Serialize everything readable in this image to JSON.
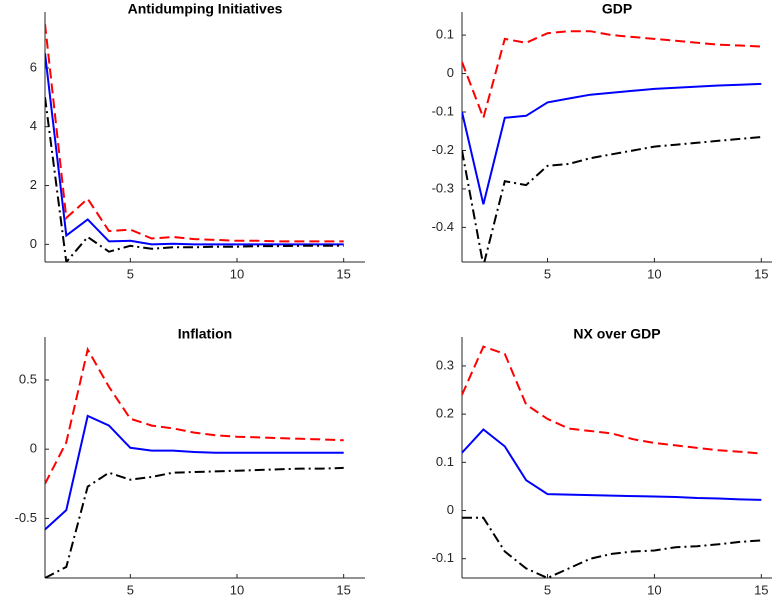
{
  "chart_data": [
    {
      "type": "line",
      "title": "Antidumping Initiatives",
      "x": [
        1,
        2,
        3,
        4,
        5,
        6,
        7,
        8,
        9,
        10,
        11,
        12,
        13,
        14,
        15
      ],
      "xlim": [
        1,
        16
      ],
      "xticks": [
        5,
        10,
        15
      ],
      "ylim": [
        -0.6,
        7.9
      ],
      "yticks": [
        0,
        2,
        4,
        6
      ],
      "series": [
        {
          "color": "#ff0000",
          "linestyle": "dashed",
          "values": [
            7.5,
            0.9,
            1.55,
            0.45,
            0.5,
            0.2,
            0.25,
            0.18,
            0.15,
            0.12,
            0.12,
            0.1,
            0.1,
            0.1,
            0.1
          ]
        },
        {
          "color": "#0000ff",
          "linestyle": "solid",
          "values": [
            6.5,
            0.3,
            0.85,
            0.1,
            0.12,
            0.0,
            0.02,
            0.0,
            0.0,
            0.0,
            0.0,
            0.0,
            0.0,
            0.0,
            0.0
          ]
        },
        {
          "color": "#000000",
          "linestyle": "dashdot",
          "values": [
            5.0,
            -0.6,
            0.25,
            -0.25,
            -0.05,
            -0.15,
            -0.1,
            -0.1,
            -0.08,
            -0.08,
            -0.06,
            -0.06,
            -0.05,
            -0.05,
            -0.05
          ]
        }
      ]
    },
    {
      "type": "line",
      "title": "GDP",
      "x": [
        1,
        2,
        3,
        4,
        5,
        6,
        7,
        8,
        9,
        10,
        11,
        12,
        13,
        14,
        15
      ],
      "xlim": [
        1,
        15.5
      ],
      "xticks": [
        5,
        10,
        15
      ],
      "ylim": [
        -0.49,
        0.16
      ],
      "yticks": [
        -0.4,
        -0.3,
        -0.2,
        -0.1,
        0,
        0.1
      ],
      "series": [
        {
          "color": "#ff0000",
          "linestyle": "dashed",
          "values": [
            0.03,
            -0.115,
            0.09,
            0.08,
            0.105,
            0.11,
            0.11,
            0.1,
            0.095,
            0.09,
            0.085,
            0.08,
            0.075,
            0.073,
            0.07
          ]
        },
        {
          "color": "#0000ff",
          "linestyle": "solid",
          "values": [
            -0.1,
            -0.34,
            -0.115,
            -0.11,
            -0.075,
            -0.065,
            -0.055,
            -0.05,
            -0.045,
            -0.04,
            -0.037,
            -0.034,
            -0.031,
            -0.029,
            -0.027
          ]
        },
        {
          "color": "#000000",
          "linestyle": "dashdot",
          "values": [
            -0.2,
            -0.5,
            -0.28,
            -0.29,
            -0.24,
            -0.235,
            -0.22,
            -0.21,
            -0.2,
            -0.19,
            -0.185,
            -0.18,
            -0.175,
            -0.17,
            -0.165
          ]
        }
      ]
    },
    {
      "type": "line",
      "title": "Inflation",
      "x": [
        1,
        2,
        3,
        4,
        5,
        6,
        7,
        8,
        9,
        10,
        11,
        12,
        13,
        14,
        15
      ],
      "xlim": [
        1,
        16
      ],
      "xticks": [
        5,
        10,
        15
      ],
      "ylim": [
        -0.93,
        0.81
      ],
      "yticks": [
        -0.5,
        0,
        0.5
      ],
      "series": [
        {
          "color": "#ff0000",
          "linestyle": "dashed",
          "values": [
            -0.25,
            0.05,
            0.72,
            0.45,
            0.22,
            0.17,
            0.15,
            0.12,
            0.1,
            0.09,
            0.085,
            0.08,
            0.075,
            0.07,
            0.065
          ]
        },
        {
          "color": "#0000ff",
          "linestyle": "solid",
          "values": [
            -0.58,
            -0.44,
            0.24,
            0.17,
            0.01,
            -0.01,
            -0.01,
            -0.02,
            -0.025,
            -0.025,
            -0.025,
            -0.025,
            -0.025,
            -0.025,
            -0.025
          ]
        },
        {
          "color": "#000000",
          "linestyle": "dashdot",
          "values": [
            -0.93,
            -0.85,
            -0.27,
            -0.17,
            -0.22,
            -0.2,
            -0.17,
            -0.165,
            -0.16,
            -0.155,
            -0.15,
            -0.145,
            -0.14,
            -0.14,
            -0.135
          ]
        }
      ]
    },
    {
      "type": "line",
      "title": "NX over GDP",
      "x": [
        1,
        2,
        3,
        4,
        5,
        6,
        7,
        8,
        9,
        10,
        11,
        12,
        13,
        14,
        15
      ],
      "xlim": [
        1,
        15.5
      ],
      "xticks": [
        5,
        10,
        15
      ],
      "ylim": [
        -0.14,
        0.36
      ],
      "yticks": [
        -0.1,
        0,
        0.1,
        0.2,
        0.3
      ],
      "series": [
        {
          "color": "#ff0000",
          "linestyle": "dashed",
          "values": [
            0.24,
            0.34,
            0.325,
            0.22,
            0.19,
            0.17,
            0.165,
            0.16,
            0.148,
            0.14,
            0.135,
            0.13,
            0.125,
            0.122,
            0.118
          ]
        },
        {
          "color": "#0000ff",
          "linestyle": "solid",
          "values": [
            0.12,
            0.168,
            0.133,
            0.063,
            0.034,
            0.033,
            0.032,
            0.031,
            0.03,
            0.029,
            0.028,
            0.026,
            0.025,
            0.023,
            0.022
          ]
        },
        {
          "color": "#000000",
          "linestyle": "dashdot",
          "values": [
            -0.015,
            -0.015,
            -0.085,
            -0.12,
            -0.14,
            -0.12,
            -0.1,
            -0.09,
            -0.085,
            -0.083,
            -0.076,
            -0.074,
            -0.07,
            -0.065,
            -0.062
          ]
        }
      ]
    }
  ]
}
